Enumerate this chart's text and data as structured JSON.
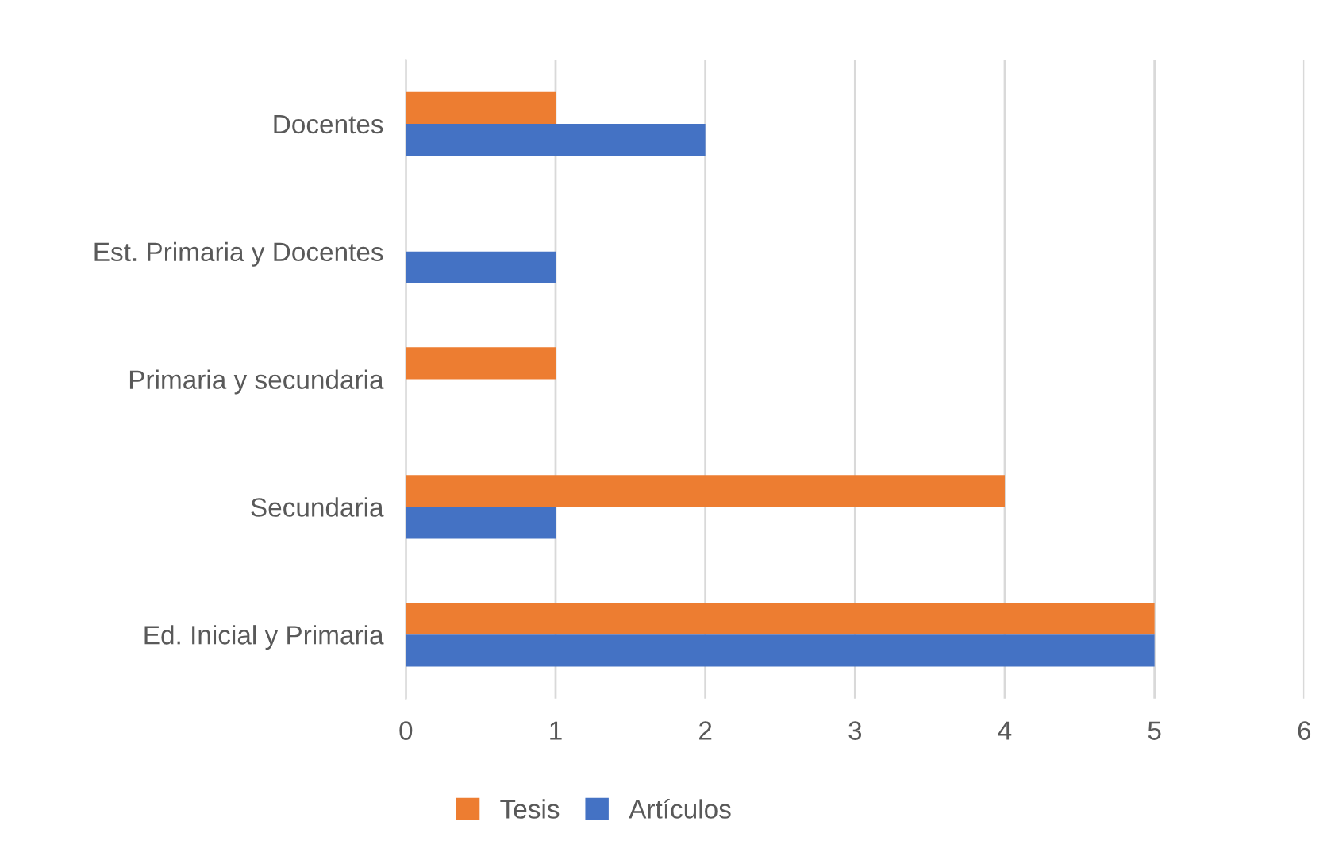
{
  "chart_data": {
    "type": "bar",
    "orientation": "horizontal",
    "categories": [
      "Docentes",
      "Est. Primaria y Docentes",
      "Primaria y secundaria",
      "Secundaria",
      "Ed. Inicial y Primaria"
    ],
    "series": [
      {
        "name": "Tesis",
        "color": "#ed7d31",
        "values": [
          1,
          null,
          1,
          4,
          5
        ]
      },
      {
        "name": "Artículos",
        "color": "#4472c4",
        "values": [
          2,
          1,
          null,
          1,
          5
        ]
      }
    ],
    "xlim": [
      0,
      6
    ],
    "xticks": [
      0,
      1,
      2,
      3,
      4,
      5,
      6
    ],
    "grid": "x",
    "legend": "bottom"
  }
}
